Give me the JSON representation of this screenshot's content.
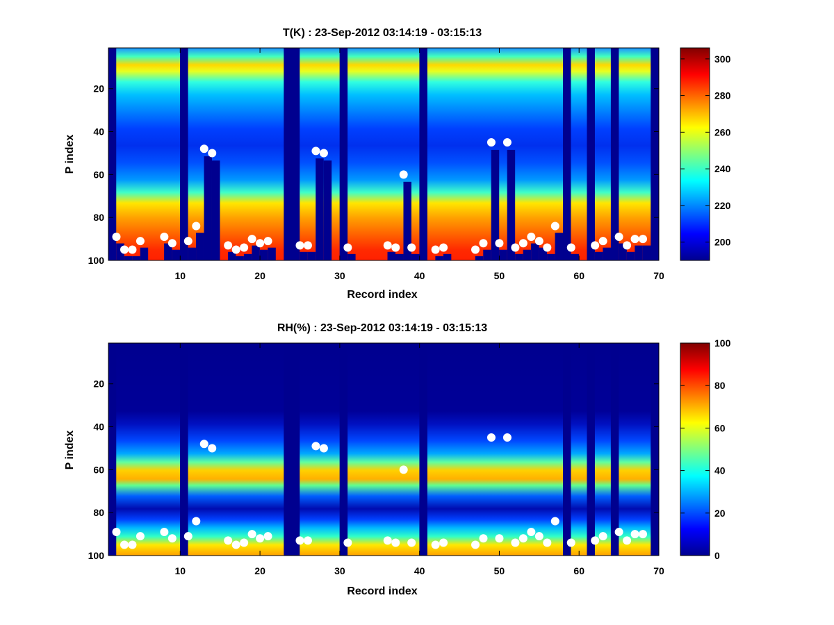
{
  "chart_data": [
    {
      "type": "heatmap",
      "title": "T(K) : 23-Sep-2012 03:14:19 - 03:15:13",
      "xlabel": "Record index",
      "ylabel": "P index",
      "xlim": [
        1,
        70
      ],
      "ylim": [
        100,
        1
      ],
      "xticks": [
        "10",
        "20",
        "30",
        "40",
        "50",
        "60",
        "70"
      ],
      "yticks": [
        "20",
        "40",
        "60",
        "80",
        "100"
      ],
      "colorbar": {
        "range": [
          190,
          306
        ],
        "ticks": [
          "200",
          "220",
          "240",
          "260",
          "280",
          "300"
        ]
      },
      "missing_records": [
        1,
        10,
        23,
        24,
        30,
        40,
        58,
        61,
        64,
        69
      ],
      "notes_profile_mean_K": [
        {
          "p": 5,
          "value": 225
        },
        {
          "p": 10,
          "value": 265
        },
        {
          "p": 20,
          "value": 230
        },
        {
          "p": 40,
          "value": 200
        },
        {
          "p": 60,
          "value": 225
        },
        {
          "p": 80,
          "value": 272
        },
        {
          "p": 95,
          "value": 288
        }
      ],
      "markers": [
        [
          2,
          89
        ],
        [
          3,
          95
        ],
        [
          4,
          95
        ],
        [
          5,
          91
        ],
        [
          8,
          89
        ],
        [
          9,
          92
        ],
        [
          11,
          91
        ],
        [
          12,
          84
        ],
        [
          13,
          48
        ],
        [
          14,
          50
        ],
        [
          16,
          93
        ],
        [
          17,
          95
        ],
        [
          18,
          94
        ],
        [
          19,
          90
        ],
        [
          20,
          92
        ],
        [
          21,
          91
        ],
        [
          25,
          93
        ],
        [
          26,
          93
        ],
        [
          27,
          49
        ],
        [
          28,
          50
        ],
        [
          31,
          94
        ],
        [
          36,
          93
        ],
        [
          37,
          94
        ],
        [
          38,
          60
        ],
        [
          39,
          94
        ],
        [
          42,
          95
        ],
        [
          43,
          94
        ],
        [
          47,
          95
        ],
        [
          48,
          92
        ],
        [
          49,
          45
        ],
        [
          50,
          92
        ],
        [
          51,
          45
        ],
        [
          52,
          94
        ],
        [
          53,
          92
        ],
        [
          54,
          89
        ],
        [
          55,
          91
        ],
        [
          56,
          94
        ],
        [
          57,
          84
        ],
        [
          59,
          94
        ],
        [
          62,
          93
        ],
        [
          63,
          91
        ],
        [
          65,
          89
        ],
        [
          66,
          93
        ],
        [
          67,
          90
        ],
        [
          68,
          90
        ]
      ]
    },
    {
      "type": "heatmap",
      "title": "RH(%) : 23-Sep-2012 03:14:19 - 03:15:13",
      "xlabel": "Record index",
      "ylabel": "P index",
      "xlim": [
        1,
        70
      ],
      "ylim": [
        100,
        1
      ],
      "xticks": [
        "10",
        "20",
        "30",
        "40",
        "50",
        "60",
        "70"
      ],
      "yticks": [
        "20",
        "40",
        "60",
        "80",
        "100"
      ],
      "colorbar": {
        "range": [
          0,
          100
        ],
        "ticks": [
          "0",
          "20",
          "40",
          "60",
          "80",
          "100"
        ]
      },
      "missing_records": [
        1,
        10,
        23,
        24,
        30,
        40,
        58,
        61,
        64,
        69
      ],
      "notes_profile_mean_pct": [
        {
          "p": 30,
          "value": 0
        },
        {
          "p": 45,
          "value": 12
        },
        {
          "p": 60,
          "value": 55
        },
        {
          "p": 72,
          "value": 8
        },
        {
          "p": 90,
          "value": 25
        },
        {
          "p": 95,
          "value": 45
        }
      ],
      "markers": [
        [
          2,
          89
        ],
        [
          3,
          95
        ],
        [
          4,
          95
        ],
        [
          5,
          91
        ],
        [
          8,
          89
        ],
        [
          9,
          92
        ],
        [
          11,
          91
        ],
        [
          12,
          84
        ],
        [
          13,
          48
        ],
        [
          14,
          50
        ],
        [
          16,
          93
        ],
        [
          17,
          95
        ],
        [
          18,
          94
        ],
        [
          19,
          90
        ],
        [
          20,
          92
        ],
        [
          21,
          91
        ],
        [
          25,
          93
        ],
        [
          26,
          93
        ],
        [
          27,
          49
        ],
        [
          28,
          50
        ],
        [
          31,
          94
        ],
        [
          36,
          93
        ],
        [
          37,
          94
        ],
        [
          38,
          60
        ],
        [
          39,
          94
        ],
        [
          42,
          95
        ],
        [
          43,
          94
        ],
        [
          47,
          95
        ],
        [
          48,
          92
        ],
        [
          49,
          45
        ],
        [
          50,
          92
        ],
        [
          51,
          45
        ],
        [
          52,
          94
        ],
        [
          53,
          92
        ],
        [
          54,
          89
        ],
        [
          55,
          91
        ],
        [
          56,
          94
        ],
        [
          57,
          84
        ],
        [
          59,
          94
        ],
        [
          62,
          93
        ],
        [
          63,
          91
        ],
        [
          65,
          89
        ],
        [
          66,
          93
        ],
        [
          67,
          90
        ],
        [
          68,
          90
        ]
      ]
    }
  ]
}
